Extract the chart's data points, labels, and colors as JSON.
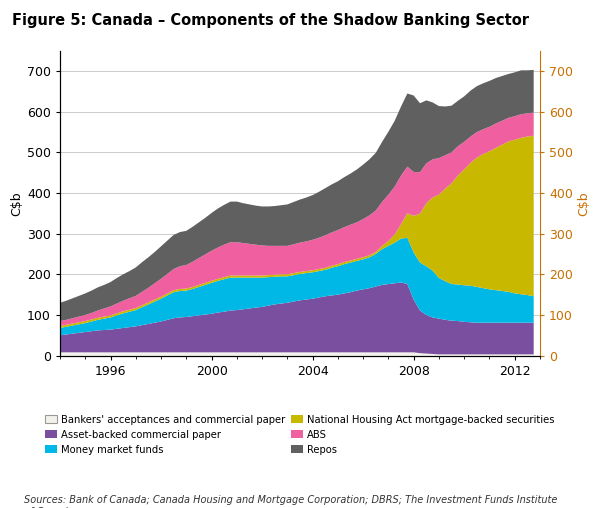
{
  "title": "Figure 5: Canada – Components of the Shadow Banking Sector",
  "ylabel_left": "C$b",
  "ylabel_right": "C$b",
  "sources": "Sources: Bank of Canada; Canada Housing and Mortgage Corporation; DBRS; The Investment Funds Institute\nof Canada",
  "ylim": [
    0,
    750
  ],
  "yticks": [
    0,
    100,
    200,
    300,
    400,
    500,
    600,
    700
  ],
  "xlim": [
    1994.0,
    2013.0
  ],
  "xticks": [
    1996,
    2000,
    2004,
    2008,
    2012
  ],
  "years": [
    1994.0,
    1994.25,
    1994.5,
    1994.75,
    1995.0,
    1995.25,
    1995.5,
    1995.75,
    1996.0,
    1996.25,
    1996.5,
    1996.75,
    1997.0,
    1997.25,
    1997.5,
    1997.75,
    1998.0,
    1998.25,
    1998.5,
    1998.75,
    1999.0,
    1999.25,
    1999.5,
    1999.75,
    2000.0,
    2000.25,
    2000.5,
    2000.75,
    2001.0,
    2001.25,
    2001.5,
    2001.75,
    2002.0,
    2002.25,
    2002.5,
    2002.75,
    2003.0,
    2003.25,
    2003.5,
    2003.75,
    2004.0,
    2004.25,
    2004.5,
    2004.75,
    2005.0,
    2005.25,
    2005.5,
    2005.75,
    2006.0,
    2006.25,
    2006.5,
    2006.75,
    2007.0,
    2007.25,
    2007.5,
    2007.75,
    2008.0,
    2008.25,
    2008.5,
    2008.75,
    2009.0,
    2009.25,
    2009.5,
    2009.75,
    2010.0,
    2010.25,
    2010.5,
    2010.75,
    2011.0,
    2011.25,
    2011.5,
    2011.75,
    2012.0,
    2012.25,
    2012.5,
    2012.75
  ],
  "bankers": [
    8,
    8,
    8,
    8,
    8,
    8,
    8,
    8,
    8,
    8,
    8,
    8,
    8,
    8,
    8,
    8,
    8,
    8,
    8,
    8,
    8,
    8,
    8,
    8,
    8,
    8,
    8,
    8,
    8,
    8,
    8,
    8,
    8,
    8,
    8,
    8,
    8,
    8,
    8,
    8,
    8,
    8,
    8,
    8,
    8,
    8,
    8,
    8,
    8,
    8,
    8,
    8,
    8,
    8,
    8,
    8,
    8,
    6,
    5,
    4,
    3,
    3,
    3,
    3,
    3,
    3,
    3,
    3,
    3,
    3,
    3,
    3,
    3,
    3,
    3,
    3
  ],
  "abcp": [
    42,
    44,
    46,
    48,
    50,
    52,
    54,
    55,
    56,
    58,
    60,
    62,
    64,
    67,
    70,
    73,
    76,
    80,
    84,
    86,
    87,
    89,
    91,
    93,
    95,
    98,
    100,
    103,
    104,
    106,
    108,
    110,
    112,
    115,
    118,
    120,
    122,
    125,
    128,
    130,
    132,
    135,
    138,
    140,
    142,
    145,
    148,
    152,
    155,
    158,
    162,
    166,
    168,
    170,
    172,
    168,
    130,
    105,
    95,
    90,
    88,
    85,
    83,
    82,
    80,
    79,
    78,
    78,
    78,
    78,
    78,
    78,
    78,
    78,
    78,
    78
  ],
  "mmf": [
    18,
    19,
    20,
    21,
    22,
    24,
    26,
    28,
    30,
    33,
    36,
    38,
    40,
    44,
    48,
    52,
    56,
    60,
    64,
    65,
    65,
    67,
    70,
    73,
    76,
    78,
    80,
    81,
    80,
    78,
    76,
    74,
    72,
    70,
    68,
    67,
    65,
    65,
    65,
    65,
    65,
    65,
    65,
    68,
    70,
    72,
    73,
    73,
    74,
    76,
    80,
    88,
    94,
    100,
    108,
    114,
    116,
    118,
    120,
    115,
    100,
    95,
    90,
    90,
    90,
    90,
    88,
    85,
    82,
    80,
    78,
    76,
    72,
    70,
    68,
    65
  ],
  "nha_mbs": [
    5,
    5,
    5,
    5,
    5,
    5,
    5,
    5,
    5,
    5,
    5,
    5,
    5,
    5,
    5,
    5,
    5,
    5,
    5,
    5,
    5,
    5,
    5,
    5,
    5,
    5,
    5,
    5,
    5,
    5,
    5,
    5,
    5,
    5,
    5,
    5,
    5,
    5,
    5,
    5,
    5,
    5,
    5,
    5,
    5,
    5,
    5,
    5,
    5,
    5,
    5,
    8,
    12,
    20,
    35,
    60,
    90,
    120,
    155,
    180,
    205,
    228,
    248,
    268,
    285,
    302,
    318,
    330,
    340,
    350,
    360,
    370,
    378,
    385,
    390,
    395
  ],
  "abs": [
    12,
    12,
    13,
    14,
    15,
    16,
    18,
    20,
    22,
    24,
    26,
    28,
    30,
    33,
    36,
    40,
    44,
    48,
    52,
    56,
    58,
    62,
    66,
    70,
    74,
    77,
    80,
    82,
    82,
    80,
    78,
    76,
    74,
    72,
    71,
    70,
    70,
    71,
    72,
    73,
    75,
    77,
    80,
    82,
    84,
    86,
    88,
    90,
    94,
    98,
    102,
    108,
    114,
    118,
    120,
    115,
    108,
    102,
    98,
    94,
    90,
    82,
    76,
    72,
    68,
    65,
    63,
    61,
    60,
    60,
    59,
    58,
    58,
    58,
    57,
    57
  ],
  "repos": [
    45,
    47,
    49,
    51,
    53,
    55,
    57,
    58,
    60,
    63,
    65,
    67,
    70,
    73,
    75,
    77,
    80,
    82,
    84,
    84,
    84,
    86,
    88,
    90,
    93,
    96,
    98,
    100,
    100,
    98,
    97,
    96,
    96,
    97,
    98,
    100,
    102,
    104,
    106,
    108,
    110,
    113,
    116,
    118,
    120,
    123,
    126,
    130,
    134,
    138,
    142,
    148,
    155,
    162,
    170,
    180,
    188,
    170,
    155,
    140,
    128,
    120,
    115,
    112,
    112,
    113,
    113,
    113,
    113,
    112,
    110,
    108,
    108,
    108,
    106,
    105
  ],
  "colors": {
    "bankers": "#f2f2ea",
    "abcp": "#7b4fa0",
    "mmf": "#00b8e6",
    "nha_mbs": "#c8b800",
    "abs": "#f060a0",
    "repos": "#606060"
  },
  "legend": [
    {
      "label": "Bankers' acceptances and commercial paper",
      "color": "#f2f2ea",
      "edgecolor": "#999999"
    },
    {
      "label": "Asset-backed commercial paper",
      "color": "#7b4fa0"
    },
    {
      "label": "Money market funds",
      "color": "#00b8e6"
    },
    {
      "label": "National Housing Act mortgage-backed securities",
      "color": "#c8b800"
    },
    {
      "label": "ABS",
      "color": "#f060a0"
    },
    {
      "label": "Repos",
      "color": "#606060"
    }
  ]
}
